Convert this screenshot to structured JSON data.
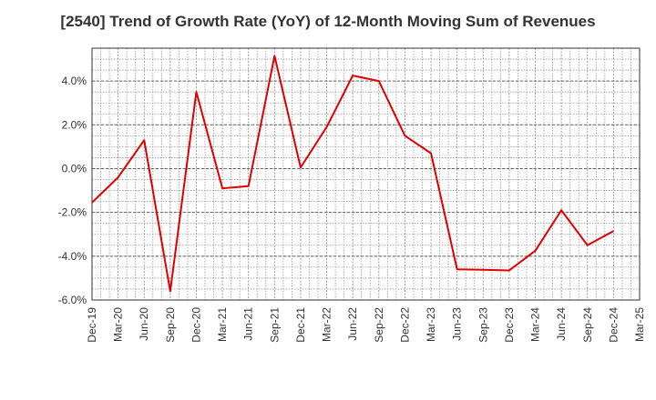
{
  "chart_data": {
    "type": "line",
    "title": "[2540]  Trend of Growth Rate (YoY) of 12-Month Moving Sum of Revenues",
    "xlabel": "",
    "ylabel": "",
    "ylim": [
      -6.0,
      5.5
    ],
    "yticks": [
      -6.0,
      -4.0,
      -2.0,
      0.0,
      2.0,
      4.0
    ],
    "ytick_labels": [
      "-6.0%",
      "-4.0%",
      "-2.0%",
      "0.0%",
      "2.0%",
      "4.0%"
    ],
    "x_tick_labels": [
      "Dec-19",
      "Mar-20",
      "Jun-20",
      "Sep-20",
      "Dec-20",
      "Mar-21",
      "Jun-21",
      "Sep-21",
      "Dec-21",
      "Mar-22",
      "Jun-22",
      "Sep-22",
      "Dec-22",
      "Mar-23",
      "Jun-23",
      "Sep-23",
      "Dec-23",
      "Mar-24",
      "Jun-24",
      "Sep-24",
      "Dec-24",
      "Mar-25"
    ],
    "grid": true,
    "series": [
      {
        "color": "#e00000",
        "x": [
          "Dec-19",
          "Mar-20",
          "Jun-20",
          "Sep-20",
          "Dec-20",
          "Mar-21",
          "Jun-21",
          "Sep-21",
          "Dec-21",
          "Mar-22",
          "Jun-22",
          "Sep-22",
          "Dec-22",
          "Mar-23",
          "Jun-23",
          "Sep-23",
          "Dec-23",
          "Mar-24",
          "Jun-24",
          "Sep-24",
          "Dec-24"
        ],
        "values": [
          -1.55,
          -0.4,
          1.3,
          -5.6,
          3.5,
          -0.9,
          -0.8,
          5.15,
          0.05,
          1.9,
          4.25,
          4.0,
          1.5,
          0.7,
          -4.6,
          -4.62,
          -4.65,
          -3.75,
          -1.9,
          -3.5,
          -2.85
        ]
      }
    ]
  }
}
